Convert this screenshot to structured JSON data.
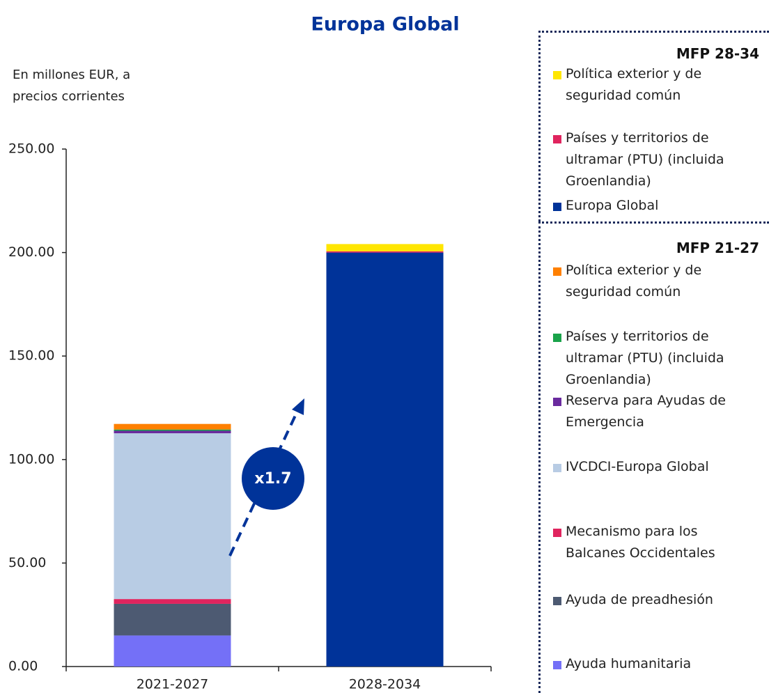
{
  "chart_data": {
    "type": "stacked_bar",
    "title": "Europa Global",
    "ylabel": "En millones EUR, a precios corrientes",
    "categories": [
      "2021-2027",
      "2028-2034"
    ],
    "ylim": [
      0,
      250
    ],
    "yticks": [
      {
        "value": 0,
        "label": "0.00"
      },
      {
        "value": 50,
        "label": "50.00"
      },
      {
        "value": 100,
        "label": "100.00"
      },
      {
        "value": 150,
        "label": "150.00"
      },
      {
        "value": 200,
        "label": "200.00"
      },
      {
        "value": 250,
        "label": "250.00"
      }
    ],
    "annotation": "x1.7",
    "series_groups": [
      {
        "name": "MFP 28-34",
        "series": [
          {
            "name": "Política exterior y de seguridad común",
            "color": "#ffe600",
            "values": [
              null,
              3.5
            ]
          },
          {
            "name": "Países y territorios de ultramar (PTU) (incluida Groenlandia)",
            "color": "#e0245e",
            "values": [
              null,
              0.6
            ]
          },
          {
            "name": "Europa Global",
            "color": "#003399",
            "values": [
              null,
              200
            ]
          }
        ]
      },
      {
        "name": "MFP 21-27",
        "series": [
          {
            "name": "Política exterior y de seguridad común",
            "color": "#ff8000",
            "values": [
              2.7,
              null
            ]
          },
          {
            "name": "Países y territorios de ultramar (PTU) (incluida Groenlandia)",
            "color": "#1aa34a",
            "values": [
              0.6,
              null
            ]
          },
          {
            "name": "Reserva para Ayudas de Emergencia",
            "color": "#6a2a9e",
            "values": [
              1.2,
              null
            ]
          },
          {
            "name": "IVCDCI-Europa Global",
            "color": "#b8cce4",
            "values": [
              80.1,
              null
            ]
          },
          {
            "name": "Mecanismo para los Balcanes Occidentales",
            "color": "#e0245e",
            "values": [
              2.3,
              null
            ]
          },
          {
            "name": "Ayuda de preadhesión",
            "color": "#4d5a72",
            "values": [
              15.3,
              null
            ]
          },
          {
            "name": "Ayuda humanitaria",
            "color": "#7470f7",
            "values": [
              15,
              null
            ]
          }
        ]
      }
    ]
  }
}
